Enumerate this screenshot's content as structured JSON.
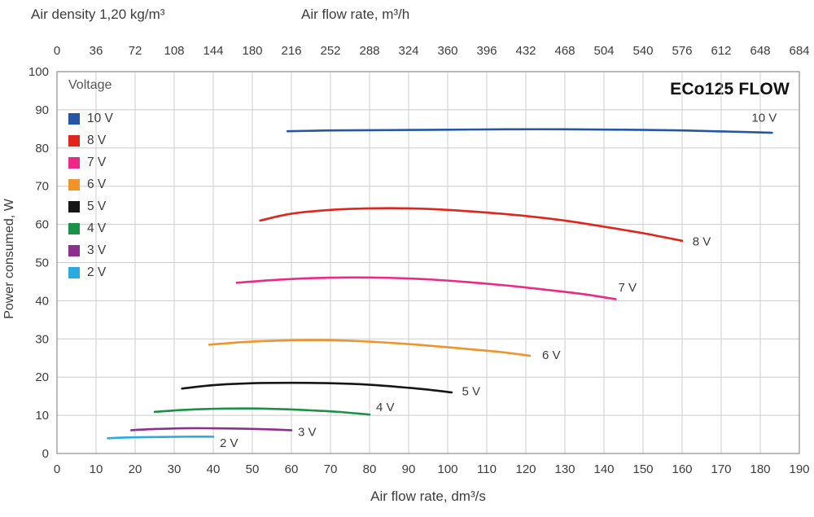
{
  "header": {
    "air_density": "Air density 1,20 kg/m³",
    "top_axis_title": "Air flow rate, m³/h"
  },
  "model_label": "ECo125 FLOW",
  "legend": {
    "title": "Voltage",
    "items": [
      {
        "label": "10 V",
        "color": "#2456a4"
      },
      {
        "label": "8 V",
        "color": "#e1251c"
      },
      {
        "label": "7 V",
        "color": "#ec2a85"
      },
      {
        "label": "6 V",
        "color": "#f0932b"
      },
      {
        "label": "5 V",
        "color": "#161616"
      },
      {
        "label": "4 V",
        "color": "#199247"
      },
      {
        "label": "3 V",
        "color": "#8c2f8e"
      },
      {
        "label": "2 V",
        "color": "#2aaae1"
      }
    ]
  },
  "chart_data": {
    "type": "line",
    "title": "ECo125 FLOW",
    "subtitle": "Air density 1,20 kg/m³",
    "xlabel": "Air flow rate, dm³/s",
    "x2label": "Air flow rate, m³/h",
    "ylabel": "Power consumed, W",
    "xlim": [
      0,
      190
    ],
    "x2lim": [
      0,
      684
    ],
    "ylim": [
      0,
      100
    ],
    "grid": true,
    "legend_position": "upper-left",
    "x_ticks": [
      0,
      10,
      20,
      30,
      40,
      50,
      60,
      70,
      80,
      90,
      100,
      110,
      120,
      130,
      140,
      150,
      160,
      170,
      180,
      190
    ],
    "x2_ticks": [
      0,
      36,
      72,
      108,
      144,
      180,
      216,
      252,
      288,
      324,
      360,
      396,
      432,
      468,
      504,
      540,
      576,
      612,
      648,
      684
    ],
    "y_ticks": [
      0,
      10,
      20,
      30,
      40,
      50,
      60,
      70,
      80,
      90,
      100
    ],
    "series": [
      {
        "name": "10 V",
        "color": "#2456a4",
        "points": [
          [
            59,
            84.4
          ],
          [
            70,
            84.6
          ],
          [
            85,
            84.7
          ],
          [
            100,
            84.8
          ],
          [
            115,
            84.9
          ],
          [
            130,
            84.9
          ],
          [
            145,
            84.8
          ],
          [
            160,
            84.6
          ],
          [
            172,
            84.3
          ],
          [
            183,
            84.0
          ]
        ],
        "label_pos": [
          181,
          88
        ]
      },
      {
        "name": "8 V",
        "color": "#e1251c",
        "points": [
          [
            52,
            61.0
          ],
          [
            60,
            62.8
          ],
          [
            70,
            63.8
          ],
          [
            80,
            64.2
          ],
          [
            90,
            64.2
          ],
          [
            100,
            63.8
          ],
          [
            110,
            63.1
          ],
          [
            120,
            62.2
          ],
          [
            130,
            61.0
          ],
          [
            140,
            59.4
          ],
          [
            150,
            57.7
          ],
          [
            160,
            55.7
          ]
        ],
        "label_pos": [
          165,
          55.5
        ]
      },
      {
        "name": "7 V",
        "color": "#ec2a85",
        "points": [
          [
            46,
            44.7
          ],
          [
            55,
            45.4
          ],
          [
            65,
            45.9
          ],
          [
            75,
            46.1
          ],
          [
            85,
            46.0
          ],
          [
            95,
            45.6
          ],
          [
            105,
            44.9
          ],
          [
            115,
            44.0
          ],
          [
            125,
            42.9
          ],
          [
            135,
            41.7
          ],
          [
            143,
            40.4
          ]
        ],
        "label_pos": [
          146,
          43.5
        ]
      },
      {
        "name": "6 V",
        "color": "#f0932b",
        "points": [
          [
            39,
            28.5
          ],
          [
            48,
            29.2
          ],
          [
            58,
            29.6
          ],
          [
            68,
            29.7
          ],
          [
            78,
            29.4
          ],
          [
            88,
            28.8
          ],
          [
            98,
            28.0
          ],
          [
            108,
            27.1
          ],
          [
            115,
            26.4
          ],
          [
            121,
            25.6
          ]
        ],
        "label_pos": [
          126.5,
          25.8
        ]
      },
      {
        "name": "5 V",
        "color": "#161616",
        "points": [
          [
            32,
            17.0
          ],
          [
            40,
            17.9
          ],
          [
            50,
            18.4
          ],
          [
            60,
            18.5
          ],
          [
            70,
            18.4
          ],
          [
            80,
            18.0
          ],
          [
            90,
            17.2
          ],
          [
            96,
            16.6
          ],
          [
            101,
            16.0
          ]
        ],
        "label_pos": [
          106,
          16.3
        ]
      },
      {
        "name": "4 V",
        "color": "#199247",
        "points": [
          [
            25,
            10.9
          ],
          [
            32,
            11.4
          ],
          [
            40,
            11.7
          ],
          [
            50,
            11.8
          ],
          [
            58,
            11.6
          ],
          [
            65,
            11.3
          ],
          [
            72,
            10.9
          ],
          [
            80,
            10.2
          ]
        ],
        "label_pos": [
          84,
          12.2
        ]
      },
      {
        "name": "3 V",
        "color": "#8c2f8e",
        "points": [
          [
            19,
            6.1
          ],
          [
            25,
            6.4
          ],
          [
            32,
            6.6
          ],
          [
            40,
            6.6
          ],
          [
            48,
            6.5
          ],
          [
            55,
            6.3
          ],
          [
            60,
            6.1
          ]
        ],
        "label_pos": [
          64,
          5.6
        ]
      },
      {
        "name": "2 V",
        "color": "#2aaae1",
        "points": [
          [
            13,
            4.0
          ],
          [
            18,
            4.2
          ],
          [
            25,
            4.3
          ],
          [
            32,
            4.4
          ],
          [
            40,
            4.4
          ]
        ],
        "label_pos": [
          44,
          2.8
        ]
      }
    ]
  }
}
